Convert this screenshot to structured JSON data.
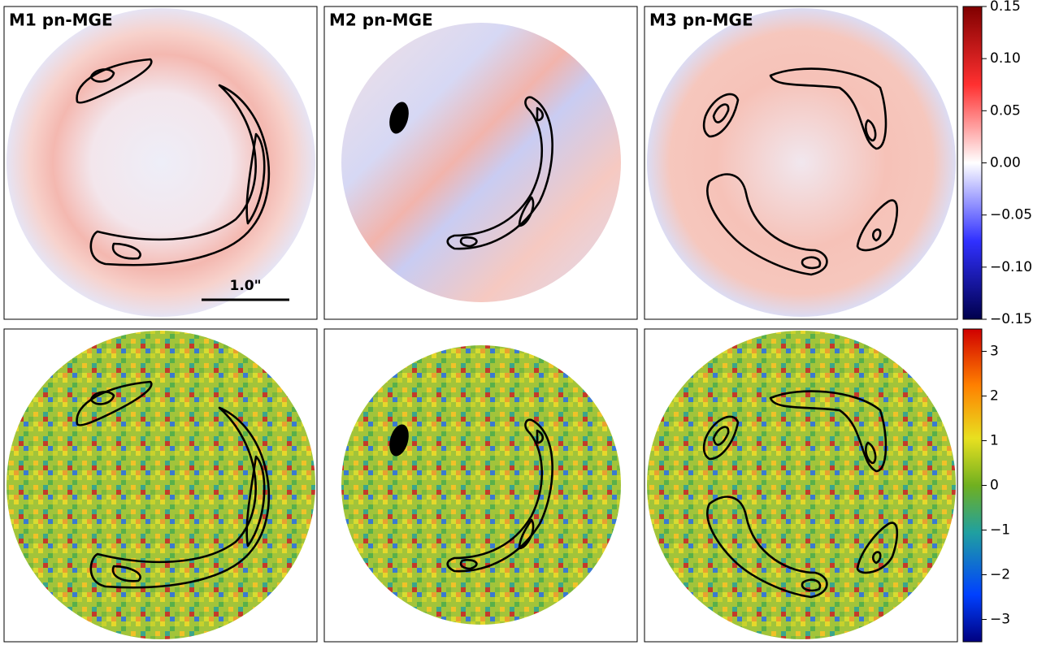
{
  "panels": [
    {
      "title": "M1 pn-MGE",
      "scale_bar": "1.0\""
    },
    {
      "title": "M2 pn-MGE"
    },
    {
      "title": "M3 pn-MGE"
    }
  ],
  "colorbars": [
    {
      "lim": [
        -0.15,
        0.15
      ],
      "ticks": [
        0.15,
        {
          "value": 0.1,
          "label": "0.10"
        },
        0.05,
        {
          "value": 0,
          "label": "0.00"
        },
        {
          "value": -0.05,
          "label": "−0.05"
        },
        {
          "value": -0.1,
          "label": "−0.10"
        },
        {
          "value": -0.15,
          "label": "−0.15"
        }
      ]
    },
    {
      "lim": [
        -3.5,
        3.5
      ],
      "ticks": [
        3,
        2,
        1,
        0,
        {
          "value": -1,
          "label": "−1"
        },
        {
          "value": -2,
          "label": "−2"
        },
        {
          "value": -3,
          "label": "−3"
        }
      ]
    }
  ]
}
